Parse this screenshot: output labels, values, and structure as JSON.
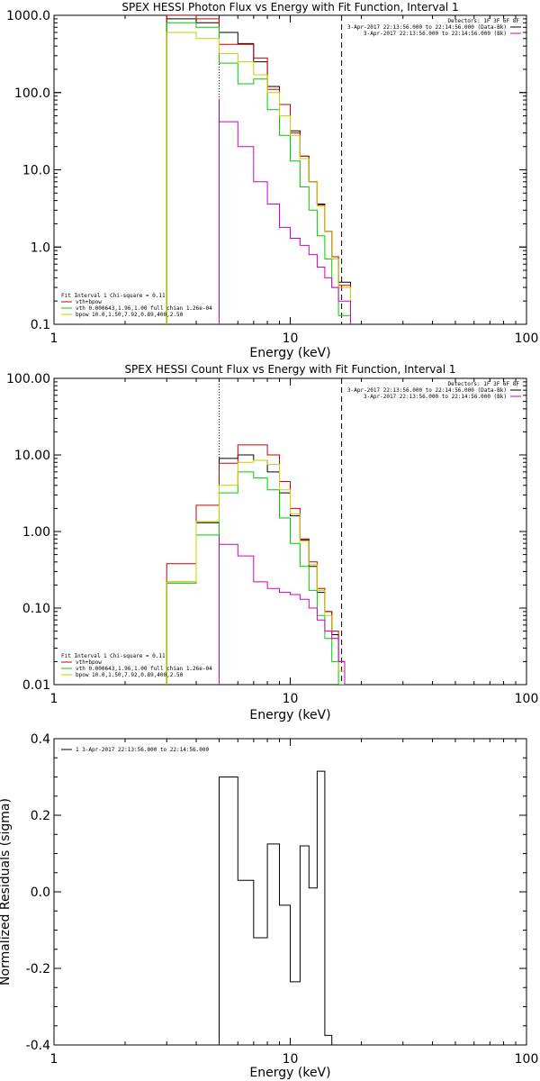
{
  "colors": {
    "data": "#000000",
    "total": "#cc0000",
    "vth": "#00cc00",
    "bpow": "#cccc00",
    "bk": "#cc00cc",
    "marker_dotted": "#000000",
    "marker_dashed": "#000000",
    "marker_purple": "#9900cc"
  },
  "chart_data": [
    {
      "type": "line",
      "title": "SPEX HESSI Photon Flux vs Energy with Fit Function, Interval 1",
      "xlabel": "Energy (keV)",
      "ylabel": "",
      "xscale": "log",
      "yscale": "log",
      "xlim": [
        1,
        100
      ],
      "ylim": [
        0.1,
        1000
      ],
      "xticks": [
        1,
        10,
        100
      ],
      "xticklabels": [
        "1",
        "10",
        "100"
      ],
      "yticks": [
        0.1,
        1,
        10,
        100,
        1000
      ],
      "yticklabels": [
        "0.1",
        "1.0",
        "10.0",
        "100.0",
        "1000.0"
      ],
      "edges": [
        3,
        4,
        5,
        6,
        7,
        8,
        9,
        10,
        11,
        12,
        13,
        14,
        15,
        16,
        18
      ],
      "vlines": [
        {
          "x": 5.0,
          "style": "dotted",
          "color_key": "marker_dotted"
        },
        {
          "x": 5.0,
          "style": "solid",
          "color_key": "marker_purple"
        },
        {
          "x": 16.5,
          "style": "dashed",
          "color_key": "marker_dashed"
        }
      ],
      "series": [
        {
          "name": "",
          "color_key": "data",
          "values": [
            900,
            800,
            600,
            430,
            250,
            120,
            70,
            32,
            15,
            7,
            3.6,
            1.6,
            0.75,
            0.35
          ]
        },
        {
          "name": "vth+bpow",
          "color_key": "total",
          "values": [
            1100,
            900,
            420,
            420,
            280,
            110,
            70,
            30,
            15,
            7,
            3.5,
            1.6,
            0.75,
            0.32
          ]
        },
        {
          "name": "vth 0.000643,1.96,1.00 full chian 1.26e-04",
          "color_key": "vth",
          "values": [
            800,
            700,
            240,
            130,
            150,
            60,
            28,
            13,
            6,
            3,
            1.4,
            0.7,
            0.3,
            0.13
          ]
        },
        {
          "name": "bpow 10.0,1.50,7.92,0.89,400,2.50",
          "color_key": "bpow",
          "values": [
            600,
            500,
            320,
            250,
            170,
            100,
            50,
            28,
            14,
            7,
            3.4,
            1.6,
            0.7,
            0.3
          ]
        },
        {
          "name": "",
          "color_key": "bk",
          "values": [
            null,
            null,
            42,
            20,
            7,
            3.6,
            1.8,
            1.3,
            1.05,
            0.8,
            0.55,
            0.4,
            0.3,
            0.2
          ]
        }
      ],
      "legend_left": {
        "title": "Fit Interval  1     Chi-square = 0.11",
        "entries": [
          {
            "label": "vth+bpow",
            "color_key": "total"
          },
          {
            "label": "vth 0.000643,1.96,1.00  full chian 1.26e-04",
            "color_key": "vth"
          },
          {
            "label": "bpow 10.0,1.50,7.92,0.89,400,2.50",
            "color_key": "bpow"
          }
        ]
      },
      "legend_right": {
        "title": "Detectors: 1F 3F 6F 8F",
        "entries": [
          {
            "label": "3-Apr-2017 22:13:56.000 to 22:14:56.000 (Data-Bk)",
            "color_key": "data"
          },
          {
            "label": "3-Apr-2017 22:13:56.000 to 22:14:56.000 (Bk)",
            "color_key": "bk"
          }
        ]
      }
    },
    {
      "type": "line",
      "title": "SPEX HESSI Count Flux vs Energy with Fit Function, Interval 1",
      "xlabel": "Energy (keV)",
      "ylabel": "",
      "xscale": "log",
      "yscale": "log",
      "xlim": [
        1,
        100
      ],
      "ylim": [
        0.01,
        100
      ],
      "xticks": [
        1,
        10,
        100
      ],
      "xticklabels": [
        "1",
        "10",
        "100"
      ],
      "yticks": [
        0.01,
        0.1,
        1,
        10,
        100
      ],
      "yticklabels": [
        "0.01",
        "0.10",
        "1.00",
        "10.00",
        "100.00"
      ],
      "edges": [
        3,
        4,
        5,
        6,
        7,
        8,
        9,
        10,
        11,
        12,
        13,
        14,
        15,
        16,
        17,
        18
      ],
      "vlines": [
        {
          "x": 5.0,
          "style": "dotted",
          "color_key": "marker_dotted"
        },
        {
          "x": 5.0,
          "style": "solid",
          "color_key": "marker_purple"
        },
        {
          "x": 16.5,
          "style": "dashed",
          "color_key": "marker_dashed"
        }
      ],
      "series": [
        {
          "name": "",
          "color_key": "data",
          "values": [
            0.22,
            1.3,
            9,
            10,
            8.5,
            6,
            3.2,
            1.6,
            0.78,
            0.35,
            0.16,
            0.09,
            0.045,
            0.015,
            null
          ]
        },
        {
          "name": "vth+bpow",
          "color_key": "total",
          "values": [
            0.38,
            2.2,
            7.8,
            13.5,
            13.5,
            10,
            4.5,
            2,
            0.8,
            0.4,
            0.18,
            0.09,
            0.05,
            0.02,
            null
          ]
        },
        {
          "name": "vth 0.000643,1.96,1.00 full chian 1.26e-04",
          "color_key": "vth",
          "values": [
            0.21,
            0.9,
            3.2,
            6,
            5,
            3.5,
            1.5,
            0.7,
            0.35,
            0.17,
            0.08,
            0.04,
            0.02,
            0.01,
            null
          ]
        },
        {
          "name": "bpow 10.0,1.50,7.92,0.89,400,2.50",
          "color_key": "bpow",
          "values": [
            0.22,
            1.35,
            4,
            8,
            8.5,
            7.5,
            3.5,
            1.7,
            0.75,
            0.37,
            0.17,
            0.08,
            0.04,
            0.015,
            null
          ]
        },
        {
          "name": "",
          "color_key": "bk",
          "values": [
            null,
            null,
            0.68,
            0.48,
            0.22,
            0.18,
            0.16,
            0.15,
            0.13,
            0.1,
            0.07,
            0.05,
            0.04,
            0.02,
            null
          ]
        }
      ],
      "legend_left": {
        "title": "Fit Interval  1     Chi-square = 0.11",
        "entries": [
          {
            "label": "vth+bpow",
            "color_key": "total"
          },
          {
            "label": "vth 0.000643,1.96,1.00  full chian 1.26e-04",
            "color_key": "vth"
          },
          {
            "label": "bpow 10.0,1.50,7.92,0.89,400,2.50",
            "color_key": "bpow"
          }
        ]
      },
      "legend_right": {
        "title": "Detectors: 1F 3F 6F 8F",
        "entries": [
          {
            "label": "3-Apr-2017 22:13:56.000 to 22:14:56.000 (Data-Bk)",
            "color_key": "data"
          },
          {
            "label": "3-Apr-2017 22:13:56.000 to 22:14:56.000 (Bk)",
            "color_key": "bk"
          }
        ]
      }
    },
    {
      "type": "line",
      "title": "",
      "xlabel": "Energy (keV)",
      "ylabel": "Normalized Residuals (sigma)",
      "xscale": "log",
      "yscale": "linear",
      "xlim": [
        1,
        100
      ],
      "ylim": [
        -0.4,
        0.4
      ],
      "xticks": [
        1,
        10,
        100
      ],
      "xticklabels": [
        "1",
        "10",
        "100"
      ],
      "yticks": [
        -0.4,
        -0.2,
        0.0,
        0.2,
        0.4
      ],
      "yticklabels": [
        "-0.4",
        "-0.2",
        "0.0",
        "0.2",
        "0.4"
      ],
      "edges": [
        5,
        6,
        7,
        8,
        9,
        10,
        11,
        12,
        13,
        14,
        15
      ],
      "series": [
        {
          "name": "1  3-Apr-2017 22:13:56.000 to 22:14:56.000",
          "color_key": "data",
          "values": [
            0.3,
            0.03,
            -0.12,
            0.125,
            -0.035,
            -0.235,
            0.12,
            0.01,
            0.315,
            -0.375
          ]
        }
      ],
      "legend_left": {
        "title": "",
        "entries": [
          {
            "label": "1  3-Apr-2017 22:13:56.000 to 22:14:56.000",
            "color_key": "data"
          }
        ]
      }
    }
  ]
}
